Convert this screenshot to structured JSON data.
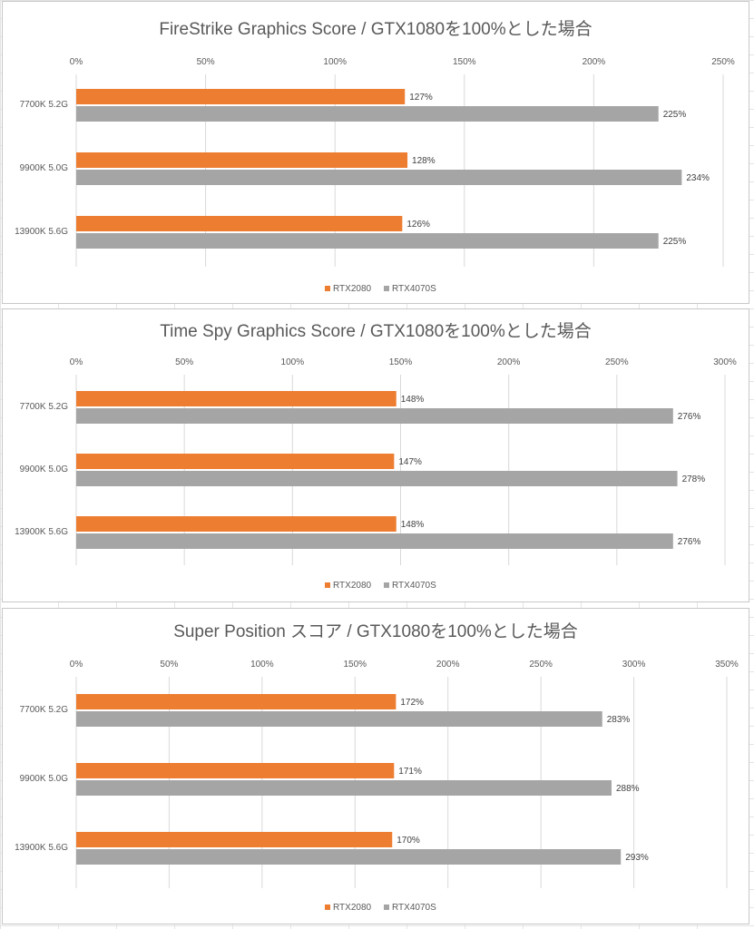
{
  "colors": {
    "RTX2080": "#ED7D31",
    "RTX4070S": "#A5A5A5"
  },
  "chart_data": [
    {
      "type": "bar",
      "orientation": "horizontal",
      "title": "FireStrike Graphics Score / GTX1080を100%とした場合",
      "categories": [
        "7700K 5.2G",
        "9900K 5.0G",
        "13900K 5.6G"
      ],
      "series": [
        {
          "name": "RTX2080",
          "values": [
            127,
            128,
            126
          ],
          "labels": [
            "127%",
            "128%",
            "126%"
          ]
        },
        {
          "name": "RTX4070S",
          "values": [
            225,
            234,
            225
          ],
          "labels": [
            "225%",
            "234%",
            "225%"
          ]
        }
      ],
      "xlim": [
        0,
        250
      ],
      "ticks": [
        0,
        50,
        100,
        150,
        200,
        250
      ],
      "tick_labels": [
        "0%",
        "50%",
        "100%",
        "150%",
        "200%",
        "250%"
      ],
      "axis_position": "top",
      "grid": true,
      "legend": "bottom"
    },
    {
      "type": "bar",
      "orientation": "horizontal",
      "title": "Time Spy Graphics Score / GTX1080を100%とした場合",
      "categories": [
        "7700K 5.2G",
        "9900K 5.0G",
        "13900K 5.6G"
      ],
      "series": [
        {
          "name": "RTX2080",
          "values": [
            148,
            147,
            148
          ],
          "labels": [
            "148%",
            "147%",
            "148%"
          ]
        },
        {
          "name": "RTX4070S",
          "values": [
            276,
            278,
            276
          ],
          "labels": [
            "276%",
            "278%",
            "276%"
          ]
        }
      ],
      "xlim": [
        0,
        300
      ],
      "ticks": [
        0,
        50,
        100,
        150,
        200,
        250,
        300
      ],
      "tick_labels": [
        "0%",
        "50%",
        "100%",
        "150%",
        "200%",
        "250%",
        "300%"
      ],
      "axis_position": "top",
      "grid": true,
      "legend": "bottom"
    },
    {
      "type": "bar",
      "orientation": "horizontal",
      "title": "Super Position スコア / GTX1080を100%とした場合",
      "categories": [
        "7700K 5.2G",
        "9900K 5.0G",
        "13900K 5.6G"
      ],
      "series": [
        {
          "name": "RTX2080",
          "values": [
            172,
            171,
            170
          ],
          "labels": [
            "172%",
            "171%",
            "170%"
          ]
        },
        {
          "name": "RTX4070S",
          "values": [
            283,
            288,
            293
          ],
          "labels": [
            "283%",
            "288%",
            "293%"
          ]
        }
      ],
      "xlim": [
        0,
        350
      ],
      "ticks": [
        0,
        50,
        100,
        150,
        200,
        250,
        300,
        350
      ],
      "tick_labels": [
        "0%",
        "50%",
        "100%",
        "150%",
        "200%",
        "250%",
        "300%",
        "350%"
      ],
      "axis_position": "top",
      "grid": true,
      "legend": "bottom"
    }
  ]
}
